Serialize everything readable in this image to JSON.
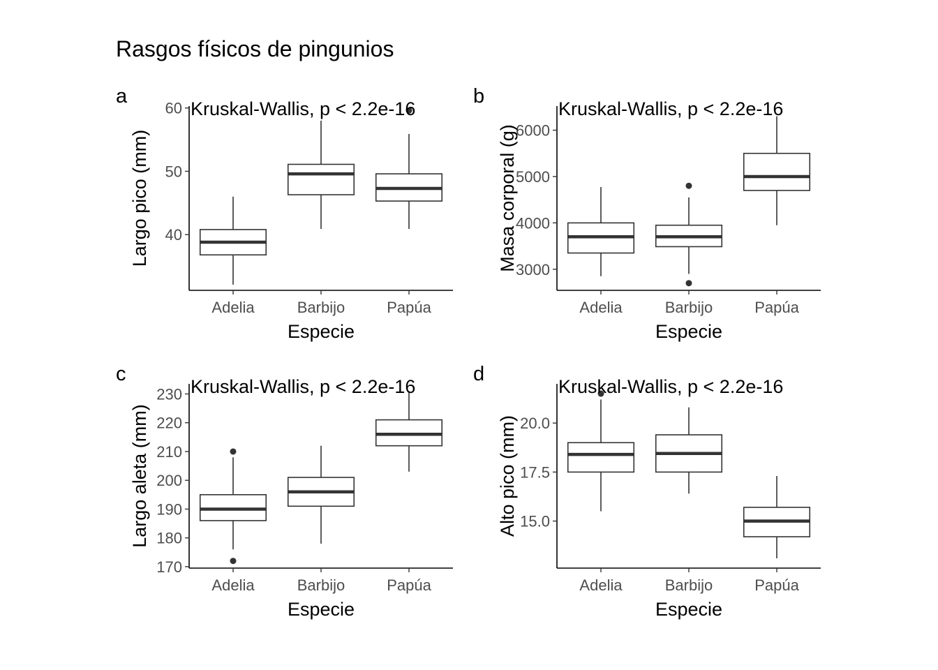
{
  "figure": {
    "title": "Rasgos físicos de pingunios"
  },
  "chart_data": [
    {
      "type": "box",
      "tag": "a",
      "title": "",
      "xlabel": "Especie",
      "ylabel": "Largo pico (mm)",
      "annotation": "Kruskal-Wallis, p < 2.2e-16",
      "categories": [
        "Adelia",
        "Barbijo",
        "Papúa"
      ],
      "ylim": [
        31.2,
        60.3
      ],
      "yticks": [
        40,
        50,
        60
      ],
      "ytick_labels": [
        "40",
        "50",
        "60"
      ],
      "boxes": [
        {
          "category": "Adelia",
          "whisker_low": 32.1,
          "q1": 36.8,
          "median": 38.8,
          "q3": 40.8,
          "whisker_high": 46.0,
          "outliers": []
        },
        {
          "category": "Barbijo",
          "whisker_low": 40.9,
          "q1": 46.3,
          "median": 49.6,
          "q3": 51.1,
          "whisker_high": 58.0,
          "outliers": []
        },
        {
          "category": "Papúa",
          "whisker_low": 40.9,
          "q1": 45.3,
          "median": 47.3,
          "q3": 49.6,
          "whisker_high": 55.9,
          "outliers": [
            59.6
          ]
        }
      ],
      "grid": false,
      "legend": "none"
    },
    {
      "type": "box",
      "tag": "b",
      "title": "",
      "xlabel": "Especie",
      "ylabel": "Masa corporal (g)",
      "annotation": "Kruskal-Wallis, p < 2.2e-16",
      "categories": [
        "Adelia",
        "Barbijo",
        "Papúa"
      ],
      "ylim": [
        2545,
        6520
      ],
      "yticks": [
        3000,
        4000,
        5000,
        6000
      ],
      "ytick_labels": [
        "3000",
        "4000",
        "5000",
        "6000"
      ],
      "boxes": [
        {
          "category": "Adelia",
          "whisker_low": 2850,
          "q1": 3350,
          "median": 3700,
          "q3": 4000,
          "whisker_high": 4775,
          "outliers": []
        },
        {
          "category": "Barbijo",
          "whisker_low": 2900,
          "q1": 3487,
          "median": 3700,
          "q3": 3950,
          "whisker_high": 4550,
          "outliers": [
            4800,
            2700
          ]
        },
        {
          "category": "Papúa",
          "whisker_low": 3950,
          "q1": 4700,
          "median": 5000,
          "q3": 5500,
          "whisker_high": 6300,
          "outliers": []
        }
      ],
      "grid": false,
      "legend": "none"
    },
    {
      "type": "box",
      "tag": "c",
      "title": "",
      "xlabel": "Especie",
      "ylabel": "Largo aleta (mm)",
      "annotation": "Kruskal-Wallis, p < 2.2e-16",
      "categories": [
        "Adelia",
        "Barbijo",
        "Papúa"
      ],
      "ylim": [
        169.5,
        233.5
      ],
      "yticks": [
        170,
        180,
        190,
        200,
        210,
        220,
        230
      ],
      "ytick_labels": [
        "170",
        "180",
        "190",
        "200",
        "210",
        "220",
        "230"
      ],
      "boxes": [
        {
          "category": "Adelia",
          "whisker_low": 176,
          "q1": 186,
          "median": 190,
          "q3": 195,
          "whisker_high": 208,
          "outliers": [
            210,
            172
          ]
        },
        {
          "category": "Barbijo",
          "whisker_low": 178,
          "q1": 191,
          "median": 196,
          "q3": 201,
          "whisker_high": 212,
          "outliers": []
        },
        {
          "category": "Papúa",
          "whisker_low": 203,
          "q1": 212,
          "median": 216,
          "q3": 221,
          "whisker_high": 231,
          "outliers": []
        }
      ],
      "grid": false,
      "legend": "none"
    },
    {
      "type": "box",
      "tag": "d",
      "title": "",
      "xlabel": "Especie",
      "ylabel": "Alto pico (mm)",
      "annotation": "Kruskal-Wallis, p < 2.2e-16",
      "categories": [
        "Adelia",
        "Barbijo",
        "Papúa"
      ],
      "ylim": [
        12.6,
        22.0
      ],
      "yticks": [
        15.0,
        17.5,
        20.0
      ],
      "ytick_labels": [
        "15.0",
        "17.5",
        "20.0"
      ],
      "boxes": [
        {
          "category": "Adelia",
          "whisker_low": 15.5,
          "q1": 17.5,
          "median": 18.4,
          "q3": 19.0,
          "whisker_high": 21.2,
          "outliers": [
            21.5
          ]
        },
        {
          "category": "Barbijo",
          "whisker_low": 16.4,
          "q1": 17.5,
          "median": 18.45,
          "q3": 19.4,
          "whisker_high": 20.8,
          "outliers": []
        },
        {
          "category": "Papúa",
          "whisker_low": 13.1,
          "q1": 14.2,
          "median": 15.0,
          "q3": 15.7,
          "whisker_high": 17.3,
          "outliers": []
        }
      ],
      "grid": false,
      "legend": "none"
    }
  ]
}
